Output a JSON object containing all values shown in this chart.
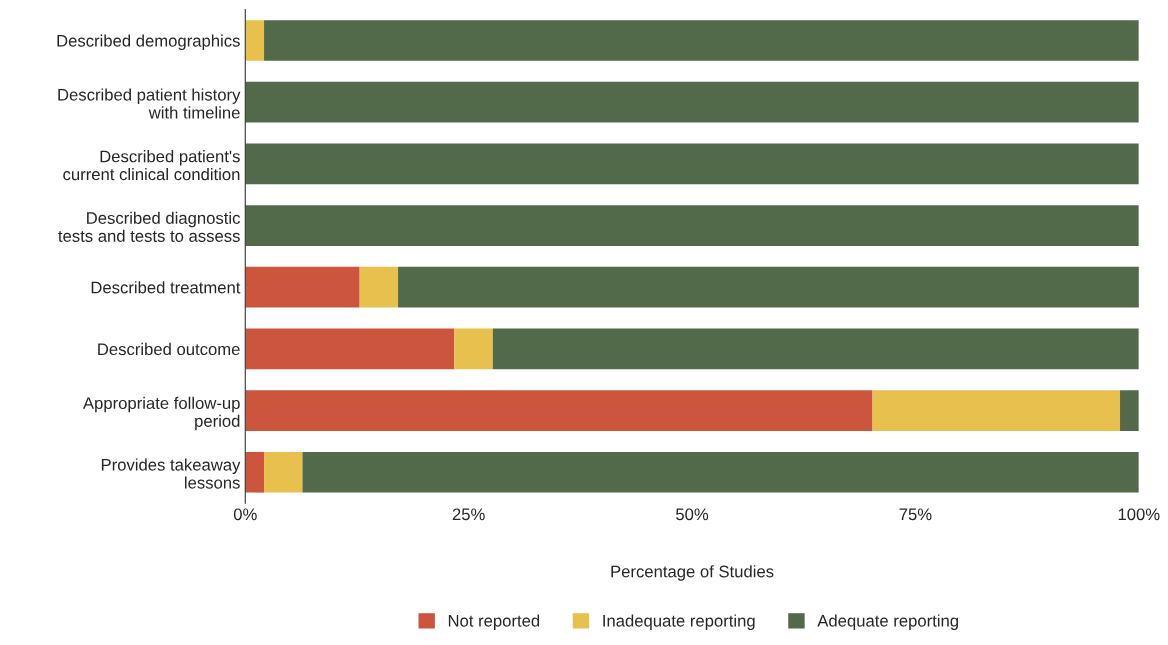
{
  "chart_data": {
    "type": "bar",
    "orientation": "horizontal",
    "stacked": true,
    "categories": [
      "Described demographics",
      "Described patient history\nwith timeline",
      "Described patient's\ncurrent clinical condition",
      "Described diagnostic\ntests and tests to assess",
      "Described treatment",
      "Described outcome",
      "Appropriate follow-up\nperiod",
      "Provides takeaway\nlessons"
    ],
    "series": [
      {
        "name": "Not reported",
        "color": "#cc553d",
        "values": [
          0,
          0,
          0,
          0,
          12.8,
          23.4,
          70.2,
          2.1
        ]
      },
      {
        "name": "Inadequate reporting",
        "color": "#e8c04e",
        "values": [
          2.1,
          0,
          0,
          0,
          4.3,
          4.3,
          27.7,
          4.3
        ]
      },
      {
        "name": "Adequate reporting",
        "color": "#52694a",
        "values": [
          97.9,
          100,
          100,
          100,
          83.0,
          72.3,
          2.1,
          93.6
        ]
      }
    ],
    "xlim": [
      0,
      100
    ],
    "xticks": [
      {
        "value": 0,
        "label": "0%"
      },
      {
        "value": 25,
        "label": "25%"
      },
      {
        "value": 50,
        "label": "50%"
      },
      {
        "value": 75,
        "label": "75%"
      },
      {
        "value": 100,
        "label": "100%"
      }
    ],
    "xlabel": "Percentage of Studies",
    "grid": false,
    "legend": "bottom"
  }
}
